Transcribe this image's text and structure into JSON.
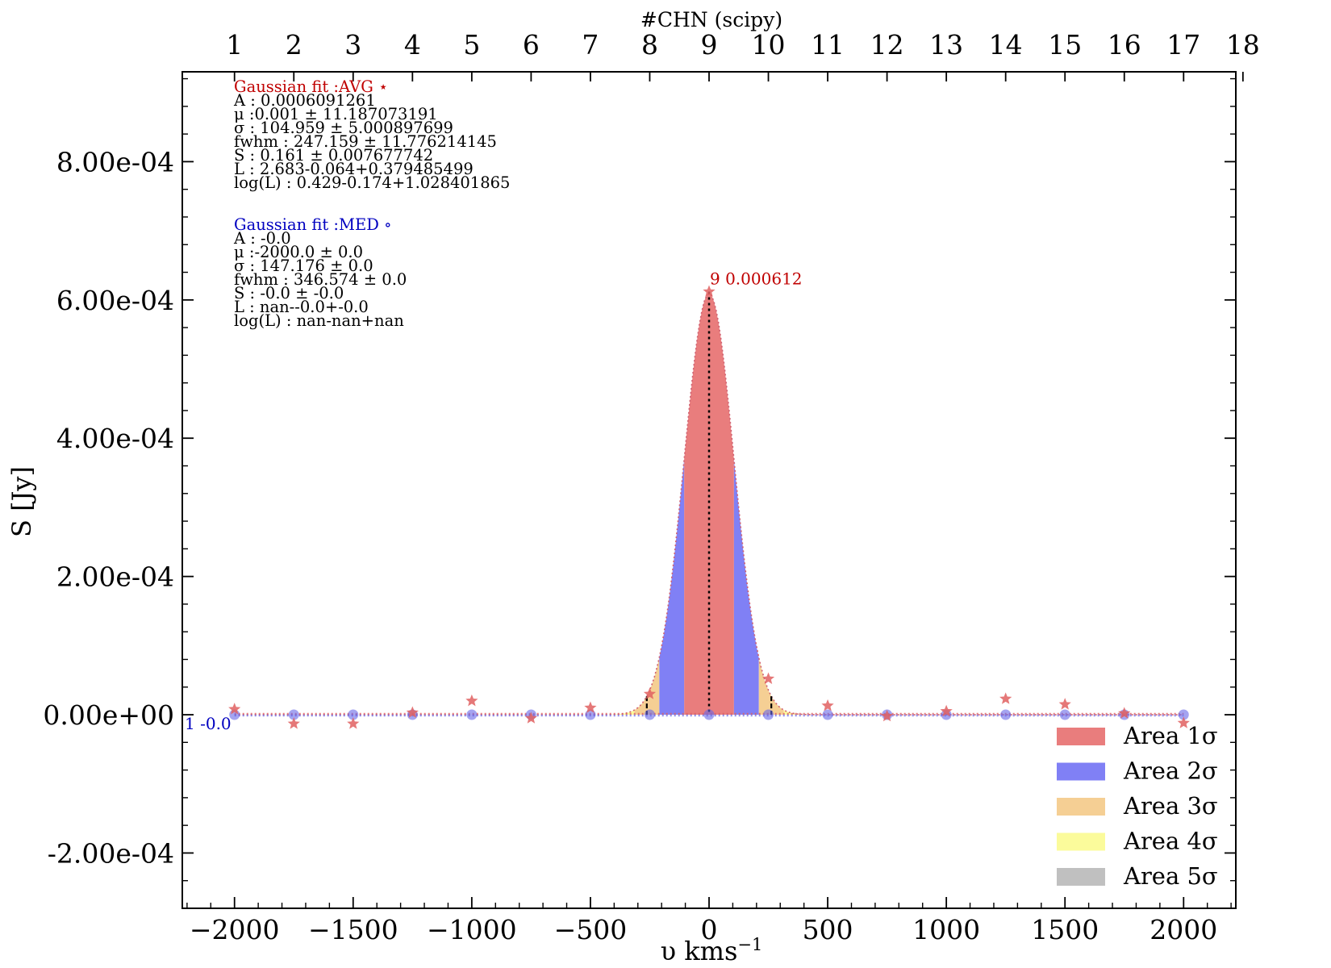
{
  "chart_data": {
    "type": "area",
    "title": "",
    "xlabel": "υ kms",
    "xlabel_exponent": "−1",
    "ylabel": "S [Jy]",
    "top_xlabel": "#CHN (scipy)",
    "xlim": [
      -2220,
      2220
    ],
    "ylim": [
      -0.00028,
      0.00093
    ],
    "x_ticks": [
      -2000,
      -1500,
      -1000,
      -500,
      0,
      500,
      1000,
      1500,
      2000
    ],
    "x_tick_labels": [
      "−2000",
      "−1500",
      "−1000",
      "−500",
      "0",
      "500",
      "1000",
      "1500",
      "2000"
    ],
    "y_ticks": [
      -0.0002,
      0,
      0.0002,
      0.0004,
      0.0006,
      0.0008
    ],
    "y_tick_labels": [
      "-2.00e-04",
      "0.00e+00",
      "2.00e-04",
      "4.00e-04",
      "6.00e-04",
      "8.00e-04"
    ],
    "top_ticks": [
      1,
      2,
      3,
      4,
      5,
      6,
      7,
      8,
      9,
      10,
      11,
      12,
      13,
      14,
      15,
      16,
      17,
      18
    ],
    "top_tick_labels": [
      "1",
      "2",
      "3",
      "4",
      "5",
      "6",
      "7",
      "8",
      "9",
      "10",
      "11",
      "12",
      "13",
      "14",
      "15",
      "16",
      "17",
      "18"
    ],
    "channel_start_velocity": -2000,
    "channel_step": 250,
    "gaussian_fit": {
      "amplitude": 0.0006091261,
      "mu": 0.001,
      "sigma": 104.959
    },
    "series": [
      {
        "name": "AVG",
        "marker": "star",
        "x": [
          -2000,
          -1750,
          -1500,
          -1250,
          -1000,
          -750,
          -500,
          -250,
          0,
          250,
          500,
          750,
          1000,
          1250,
          1500,
          1750,
          2000
        ],
        "values": [
          8e-06,
          -1.3e-05,
          -1.3e-05,
          3e-06,
          2e-05,
          -5e-06,
          1e-05,
          3e-05,
          0.000612,
          5.2e-05,
          1.3e-05,
          -2e-06,
          5e-06,
          2.3e-05,
          1.5e-05,
          2e-06,
          -1.2e-05
        ]
      },
      {
        "name": "MED",
        "marker": "circle",
        "x": [
          -2000,
          -1750,
          -1500,
          -1250,
          -1000,
          -750,
          -500,
          -250,
          0,
          250,
          500,
          750,
          1000,
          1250,
          1500,
          1750,
          2000
        ],
        "values": [
          0,
          0,
          0,
          0,
          0,
          0,
          0,
          0,
          0,
          0,
          0,
          0,
          0,
          0,
          0,
          0,
          0
        ]
      }
    ],
    "annotations": {
      "peak": {
        "x": 0,
        "y": 0.000612,
        "label": "9 0.000612"
      },
      "med_start": {
        "x": -2000,
        "y": 0,
        "label": "1 -0.0"
      }
    },
    "legend_position": "bottom-right",
    "legend": [
      {
        "label": "Area 1σ",
        "color": "#e97d7d"
      },
      {
        "label": "Area 2σ",
        "color": "#8080f5"
      },
      {
        "label": "Area 3σ",
        "color": "#f5cf94"
      },
      {
        "label": "Area 4σ",
        "color": "#fbfb9b"
      },
      {
        "label": "Area 5σ",
        "color": "#c0c0c0"
      }
    ],
    "colors": {
      "avg": "#e06060",
      "med": "#6868e8",
      "avg_text": "#c00000",
      "med_text": "#0000c0"
    },
    "fit_avg": {
      "heading": "Gaussian fit :AVG ⋆",
      "lines": [
        "A : 0.0006091261",
        "μ :0.001 ± 11.187073191",
        "σ : 104.959 ± 5.000897699",
        "fwhm : 247.159 ± 11.776214145",
        "S : 0.161 ± 0.007677742",
        "L : 2.683-0.064+0.379485499",
        "log(L) : 0.429-0.174+1.028401865"
      ]
    },
    "fit_med": {
      "heading": "Gaussian fit :MED ∘",
      "lines": [
        "A : -0.0",
        "μ :-2000.0 ± 0.0",
        "σ : 147.176 ± 0.0",
        "fwhm : 346.574 ± 0.0",
        "S : -0.0 ± -0.0",
        "L : nan--0.0+-0.0",
        "log(L) : nan-nan+nan"
      ]
    }
  }
}
